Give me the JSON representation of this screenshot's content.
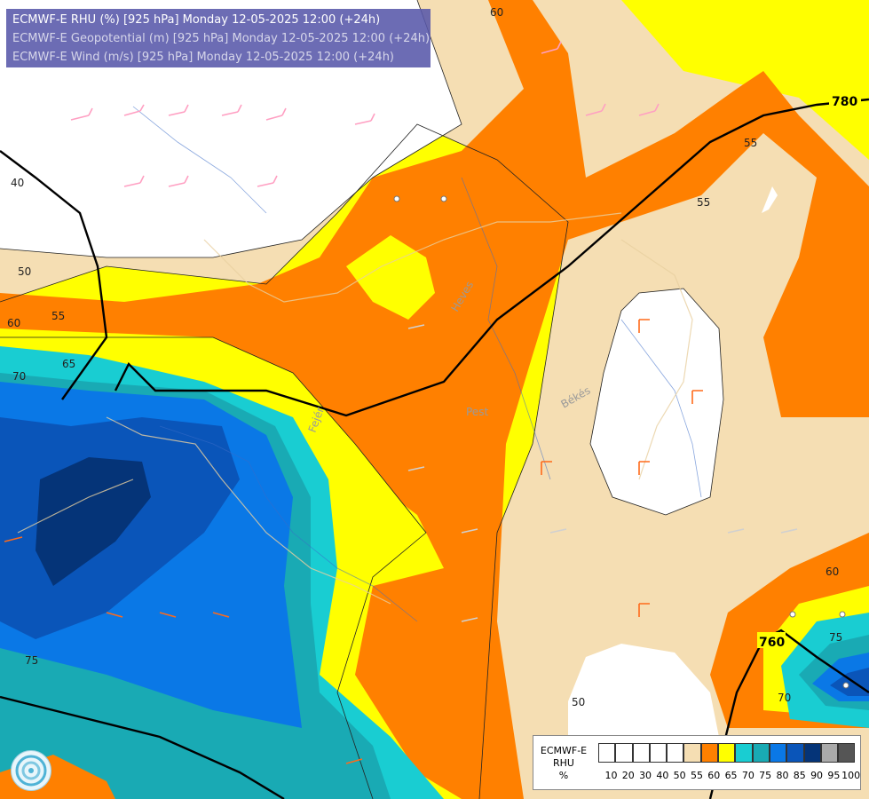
{
  "header": {
    "lines": [
      "ECMWF-E RHU (%) [925 hPa] Monday 12-05-2025 12:00 (+24h)",
      "ECMWF-E Geopotential (m) [925 hPa] Monday 12-05-2025 12:00 (+24h)",
      "ECMWF-E Wind (m/s) [925 hPa] Monday 12-05-2025 12:00 (+24h)"
    ]
  },
  "map": {
    "contour_labels": [
      "60",
      "55",
      "55",
      "40",
      "50",
      "55",
      "60",
      "65",
      "70",
      "75",
      "60",
      "75",
      "70",
      "50"
    ],
    "geopotential_labels": [
      "780",
      "760"
    ],
    "place_labels": [
      "Heves",
      "Pest",
      "Békés",
      "Fejér"
    ],
    "colors": {
      "white": "#ffffff",
      "c55": "#f5deb3",
      "c60": "#ff8000",
      "c65": "#ffff00",
      "c70": "#19cdd2",
      "c75": "#19aab4",
      "c80": "#0a78e6",
      "c85": "#0a55b9",
      "c90": "#053478"
    }
  },
  "legend": {
    "title_lines": [
      "ECMWF-E",
      "RHU",
      "%"
    ],
    "levels": [
      "10",
      "20",
      "30",
      "40",
      "50",
      "55",
      "60",
      "65",
      "70",
      "75",
      "80",
      "85",
      "90",
      "95",
      "100"
    ],
    "colors": [
      "#ffffff",
      "#ffffff",
      "#ffffff",
      "#ffffff",
      "#ffffff",
      "#f5deb3",
      "#ff8000",
      "#ffff00",
      "#19cdd2",
      "#19aab4",
      "#0a78e6",
      "#0a55b9",
      "#053478",
      "#aaaaaa",
      "#555555"
    ]
  }
}
